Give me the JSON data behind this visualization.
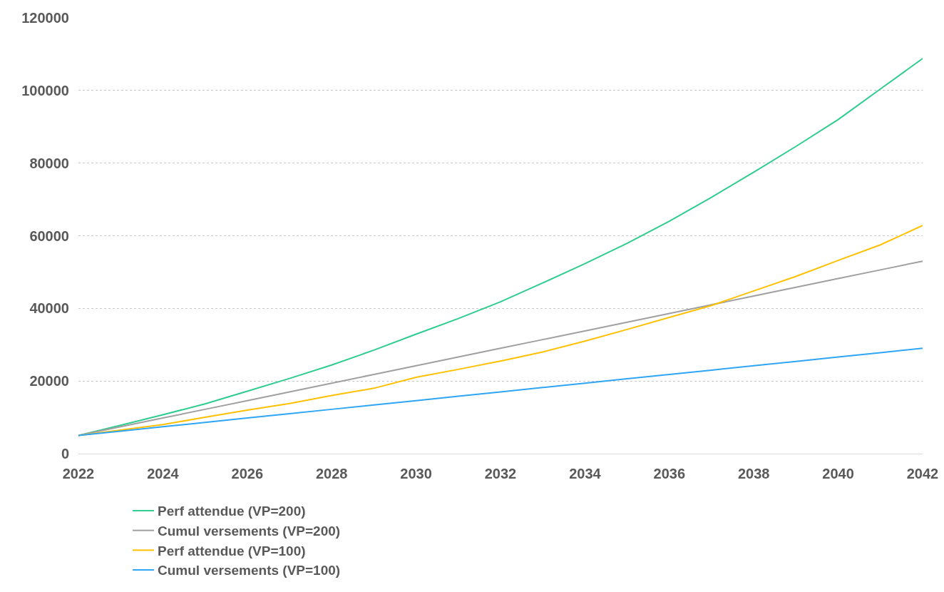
{
  "chart_data": {
    "type": "line",
    "x": [
      2022,
      2023,
      2024,
      2025,
      2026,
      2027,
      2028,
      2029,
      2030,
      2031,
      2032,
      2033,
      2034,
      2035,
      2036,
      2037,
      2038,
      2039,
      2040,
      2041,
      2042
    ],
    "series": [
      {
        "name": "Perf attendue (VP=200)",
        "color": "#2ecc8f",
        "values": [
          5000,
          7800,
          10700,
          13700,
          17200,
          20700,
          24400,
          28500,
          32900,
          37200,
          41800,
          47000,
          52300,
          57900,
          64000,
          70600,
          77500,
          84600,
          92000,
          100400,
          108800
        ]
      },
      {
        "name": "Cumul versements (VP=200)",
        "color": "#a0a0a0",
        "values": [
          5000,
          7400,
          9800,
          12200,
          14600,
          17000,
          19400,
          21800,
          24200,
          26600,
          29000,
          31400,
          33800,
          36200,
          38600,
          41000,
          43400,
          45800,
          48200,
          50600,
          53000
        ]
      },
      {
        "name": "Perf attendue (VP=100)",
        "color": "#ffc000",
        "values": [
          5000,
          6500,
          8000,
          10000,
          12000,
          13800,
          16000,
          18000,
          21000,
          23200,
          25500,
          28000,
          31000,
          34200,
          37500,
          40800,
          44800,
          48800,
          53200,
          57500,
          62800
        ]
      },
      {
        "name": "Cumul versements (VP=100)",
        "color": "#2ea6f5",
        "values": [
          5000,
          6200,
          7400,
          8600,
          9800,
          11000,
          12200,
          13400,
          14600,
          15800,
          17000,
          18200,
          19400,
          20600,
          21800,
          23000,
          24200,
          25400,
          26600,
          27800,
          29000
        ]
      }
    ],
    "xlim": [
      2022,
      2042
    ],
    "xticks": [
      2022,
      2024,
      2026,
      2028,
      2030,
      2032,
      2034,
      2036,
      2038,
      2040,
      2042
    ],
    "ylim": [
      0,
      120000
    ],
    "yticks": [
      0,
      20000,
      40000,
      60000,
      80000,
      100000,
      120000
    ],
    "grid": "y",
    "legend": "bottom",
    "marker": "none",
    "line_style": "solid"
  }
}
